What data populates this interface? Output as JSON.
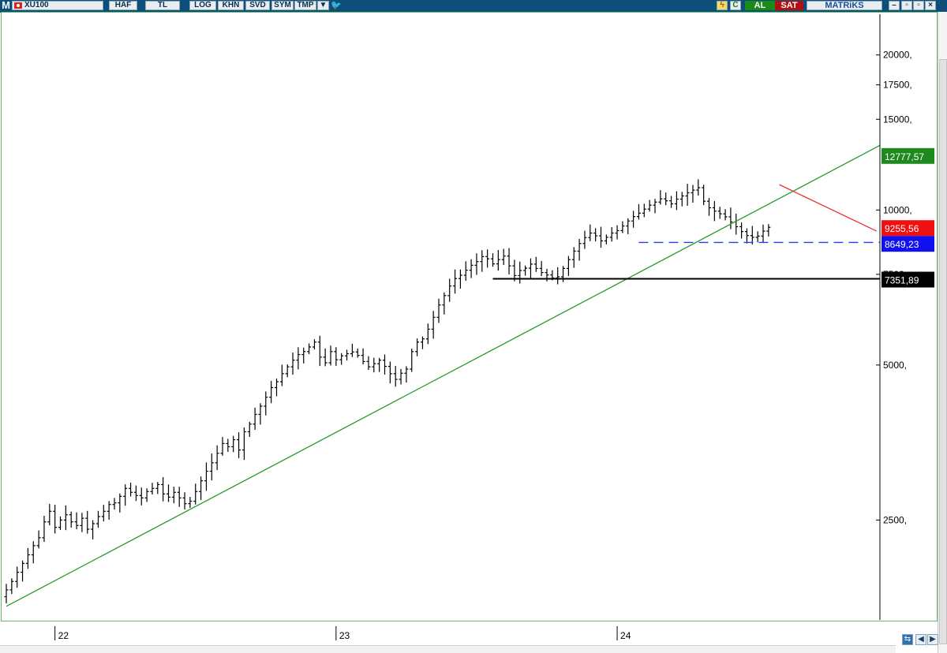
{
  "toolbar": {
    "app_letter": "M",
    "symbol": "XU100",
    "buttons": [
      "HAF",
      "TL",
      "LOG",
      "KHN",
      "SVD",
      "SYM",
      "TMP"
    ],
    "buy_label": "AL",
    "sell_label": "SAT",
    "brand": "MATRiKS",
    "colors": {
      "bar": "#0c4f7a",
      "buy": "#1a8a1a",
      "sell": "#b01010"
    }
  },
  "chart_data": {
    "type": "ohlc",
    "scale": "log",
    "ylim": [
      1600,
      24000
    ],
    "yticks": [
      {
        "value": 20000,
        "label": "20000,"
      },
      {
        "value": 17500,
        "label": "17500,"
      },
      {
        "value": 15000,
        "label": "15000,"
      },
      {
        "value": 10000,
        "label": "10000,"
      },
      {
        "value": 7500,
        "label": "7500,"
      },
      {
        "value": 5000,
        "label": "5000,"
      },
      {
        "value": 2500,
        "label": "2500,"
      }
    ],
    "year_labels": [
      {
        "label": "22",
        "bar": 9
      },
      {
        "label": "23",
        "bar": 61
      },
      {
        "label": "24",
        "bar": 113
      }
    ],
    "closes": [
      1830,
      1900,
      1980,
      2060,
      2140,
      2230,
      2310,
      2480,
      2600,
      2420,
      2500,
      2560,
      2480,
      2440,
      2520,
      2400,
      2460,
      2540,
      2600,
      2680,
      2700,
      2780,
      2880,
      2830,
      2790,
      2760,
      2840,
      2880,
      2930,
      2810,
      2770,
      2830,
      2760,
      2690,
      2720,
      2840,
      2980,
      3110,
      3230,
      3370,
      3520,
      3470,
      3580,
      3420,
      3710,
      3840,
      4010,
      4160,
      4330,
      4520,
      4640,
      4810,
      4960,
      5110,
      5240,
      5310,
      5420,
      5540,
      5180,
      5050,
      5310,
      5120,
      5210,
      5260,
      5300,
      5220,
      5080,
      4960,
      5030,
      5110,
      4970,
      4810,
      4690,
      4820,
      4910,
      5310,
      5540,
      5620,
      5870,
      6190,
      6540,
      6820,
      7120,
      7360,
      7470,
      7640,
      7810,
      7940,
      8120,
      8040,
      7860,
      8010,
      8140,
      7790,
      7460,
      7630,
      7710,
      7850,
      7700,
      7560,
      7480,
      7380,
      7420,
      7700,
      8010,
      8320,
      8610,
      8840,
      9020,
      8910,
      8710,
      8850,
      9020,
      9120,
      9310,
      9520,
      9710,
      9860,
      10040,
      10220,
      10360,
      10510,
      10420,
      10280,
      10500,
      10650,
      10800,
      10930,
      11050,
      10400,
      10100,
      9950,
      9830,
      9700,
      9480,
      9280,
      9080,
      8920,
      8850,
      8900,
      9100,
      9255.56
    ],
    "levels": [
      {
        "label": "12777,57",
        "value": 12777.57,
        "color": "#1e8a1e"
      },
      {
        "label": "9255,56",
        "value": 9255.56,
        "color": "#f01010"
      },
      {
        "label": "8649,23",
        "value": 8649.23,
        "color": "#1010f0"
      },
      {
        "label": "7351,89",
        "value": 7351.89,
        "color": "#000000"
      }
    ],
    "lines": [
      {
        "name": "uptrend",
        "color": "#2a9a2a",
        "from": [
          0,
          1700
        ],
        "to": [
          162,
          13350
        ]
      },
      {
        "name": "downtrend",
        "color": "#e83030",
        "from": [
          143,
          11200
        ],
        "to": [
          161,
          9100
        ]
      },
      {
        "name": "support",
        "color": "#000000",
        "from": [
          90,
          7351.89
        ],
        "to": [
          162,
          7351.89
        ]
      },
      {
        "name": "support-dashed",
        "color": "#2a3ef0",
        "dash": true,
        "from": [
          117,
          8649.23
        ],
        "to": [
          162,
          8649.23
        ]
      }
    ],
    "grid": false
  }
}
